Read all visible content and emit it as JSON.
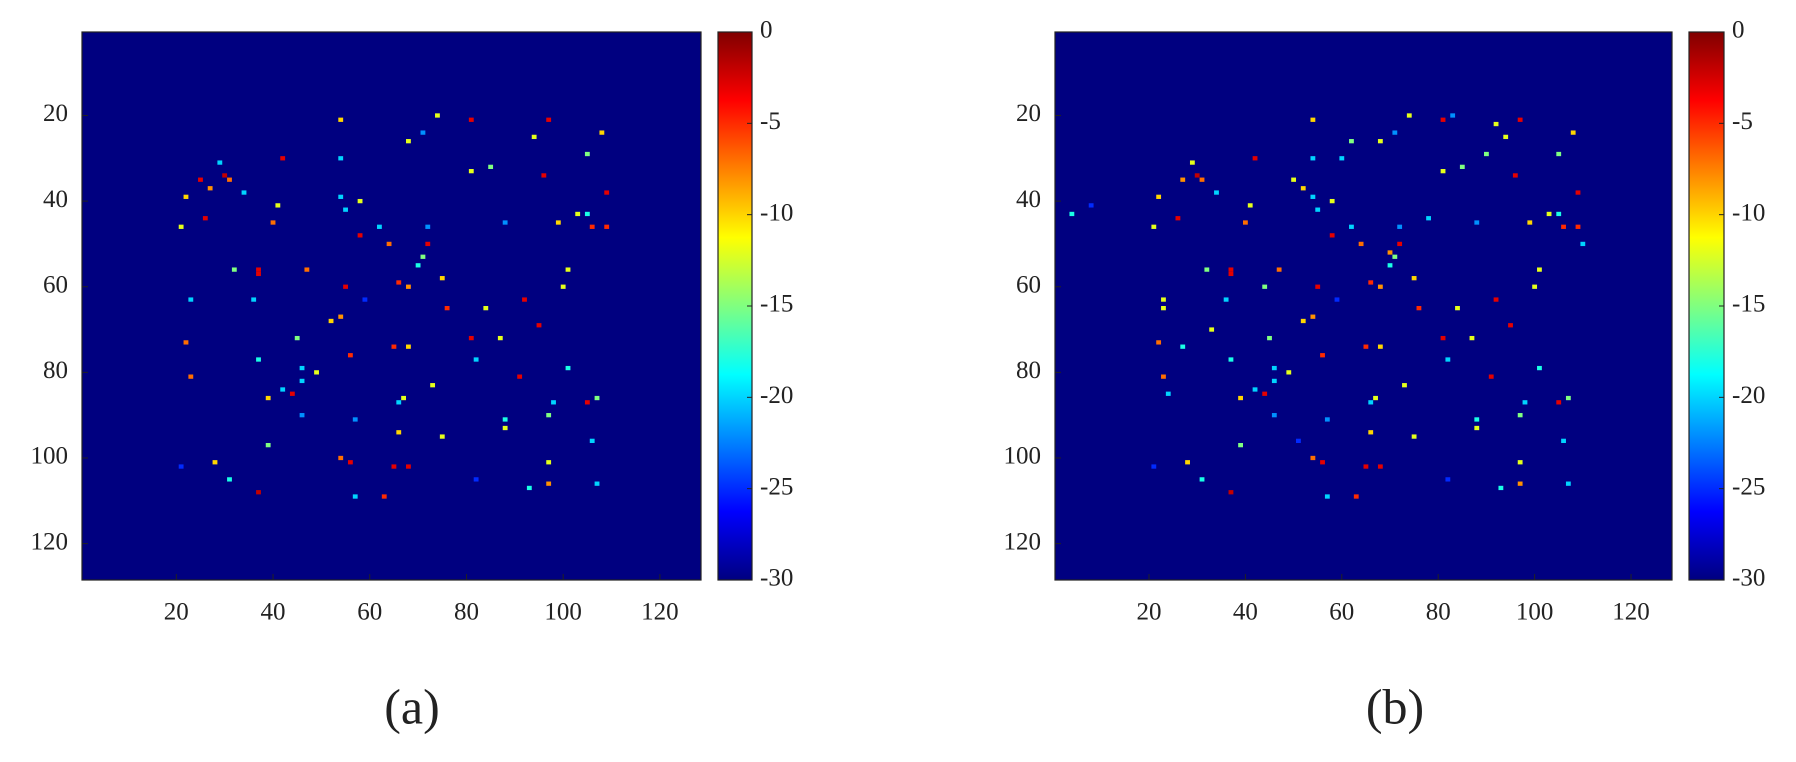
{
  "chart_data": [
    {
      "type": "heatmap",
      "panel_label": "(a)",
      "colormap": "jet",
      "fill_value": -30,
      "xlim": [
        0.5,
        128.5
      ],
      "ylim": [
        0.5,
        128.5
      ],
      "y_reversed": true,
      "xticks": [
        20,
        40,
        60,
        80,
        100,
        120
      ],
      "yticks": [
        20,
        40,
        60,
        80,
        100,
        120
      ],
      "clim": [
        -30,
        0
      ],
      "cbar_ticks": [
        0,
        -5,
        -10,
        -15,
        -20,
        -25,
        -30
      ],
      "x": [
        21,
        22,
        25,
        26,
        27,
        29,
        30,
        31,
        34,
        37,
        37,
        36,
        32,
        23,
        22,
        23,
        21,
        28,
        31,
        37,
        39,
        37,
        39,
        42,
        44,
        46,
        46,
        46,
        49,
        45,
        52,
        54,
        55,
        56,
        57,
        54,
        56,
        57,
        63,
        65,
        68,
        66,
        66,
        67,
        68,
        65,
        66,
        68,
        70,
        71,
        72,
        72,
        75,
        76,
        73,
        75,
        82,
        82,
        87,
        88,
        88,
        92,
        95,
        93,
        97,
        97,
        97,
        98,
        101,
        100,
        101,
        99,
        103,
        105,
        106,
        107,
        105,
        106,
        107,
        91,
        84,
        81,
        81,
        85,
        88,
        96,
        97,
        94,
        105,
        108,
        109,
        109,
        54,
        54,
        54,
        55,
        58,
        58,
        62,
        64,
        68,
        71,
        74,
        81,
        42,
        41,
        40,
        47,
        59
      ],
      "y": [
        46,
        39,
        35,
        44,
        37,
        31,
        34,
        35,
        38,
        56,
        57,
        63,
        56,
        63,
        73,
        81,
        102,
        101,
        105,
        108,
        97,
        77,
        86,
        84,
        85,
        79,
        82,
        90,
        80,
        72,
        68,
        67,
        60,
        76,
        91,
        100,
        101,
        109,
        109,
        102,
        102,
        94,
        87,
        86,
        74,
        74,
        59,
        60,
        55,
        53,
        50,
        46,
        58,
        65,
        83,
        95,
        77,
        105,
        72,
        93,
        91,
        63,
        69,
        107,
        101,
        106,
        90,
        87,
        79,
        60,
        56,
        45,
        43,
        43,
        46,
        86,
        87,
        96,
        106,
        81,
        65,
        72,
        33,
        32,
        45,
        34,
        21,
        25,
        29,
        24,
        38,
        46,
        21,
        30,
        39,
        42,
        40,
        48,
        46,
        50,
        26,
        24,
        20,
        21,
        30,
        41,
        45,
        56,
        63
      ],
      "values": [
        -12,
        -10,
        -3,
        -3,
        -8,
        -20,
        -2,
        -7,
        -20,
        -3,
        -3,
        -20,
        -15,
        -20,
        -7,
        -7,
        -25,
        -10,
        -18,
        -2,
        -15,
        -18,
        -10,
        -20,
        -3,
        -20,
        -20,
        -22,
        -12,
        -15,
        -10,
        -8,
        -3,
        -5,
        -22,
        -7,
        -3,
        -20,
        -5,
        -3,
        -3,
        -10,
        -20,
        -12,
        -10,
        -5,
        -5,
        -8,
        -18,
        -15,
        -3,
        -22,
        -10,
        -5,
        -12,
        -12,
        -20,
        -25,
        -12,
        -12,
        -18,
        -3,
        -3,
        -18,
        -12,
        -8,
        -15,
        -20,
        -18,
        -12,
        -12,
        -10,
        -12,
        -18,
        -5,
        -15,
        -3,
        -20,
        -20,
        -3,
        -12,
        -3,
        -12,
        -15,
        -22,
        -3,
        -3,
        -12,
        -15,
        -10,
        -3,
        -5,
        -10,
        -20,
        -20,
        -20,
        -12,
        -3,
        -20,
        -7,
        -12,
        -22,
        -12,
        -3,
        -3,
        -12,
        -7,
        -7,
        -25
      ]
    },
    {
      "type": "heatmap",
      "panel_label": "(b)",
      "colormap": "jet",
      "fill_value": -30,
      "xlim": [
        0.5,
        128.5
      ],
      "ylim": [
        0.5,
        128.5
      ],
      "y_reversed": true,
      "xticks": [
        20,
        40,
        60,
        80,
        100,
        120
      ],
      "yticks": [
        20,
        40,
        60,
        80,
        100,
        120
      ],
      "clim": [
        -30,
        0
      ],
      "cbar_ticks": [
        0,
        -5,
        -10,
        -15,
        -20,
        -25,
        -30
      ],
      "x": [
        4,
        8,
        21,
        22,
        23,
        24,
        26,
        27,
        29,
        30,
        31,
        34,
        37,
        37,
        36,
        32,
        23,
        22,
        23,
        21,
        28,
        31,
        37,
        39,
        37,
        39,
        42,
        44,
        46,
        46,
        46,
        49,
        45,
        52,
        54,
        55,
        56,
        57,
        54,
        56,
        57,
        63,
        65,
        68,
        66,
        66,
        67,
        68,
        65,
        66,
        68,
        70,
        71,
        72,
        72,
        75,
        76,
        73,
        75,
        82,
        82,
        87,
        88,
        88,
        92,
        95,
        93,
        97,
        97,
        97,
        98,
        101,
        100,
        101,
        99,
        103,
        105,
        106,
        107,
        105,
        106,
        107,
        91,
        84,
        81,
        81,
        85,
        88,
        96,
        97,
        94,
        105,
        108,
        109,
        109,
        54,
        54,
        54,
        55,
        58,
        58,
        62,
        64,
        68,
        71,
        74,
        81,
        42,
        41,
        40,
        47,
        59,
        27,
        33,
        44,
        50,
        51,
        52,
        60,
        62,
        70,
        78,
        83,
        90,
        92,
        110
      ],
      "y": [
        43,
        41,
        46,
        39,
        63,
        85,
        44,
        35,
        31,
        34,
        35,
        38,
        56,
        57,
        63,
        56,
        65,
        73,
        81,
        102,
        101,
        105,
        108,
        97,
        77,
        86,
        84,
        85,
        79,
        82,
        90,
        80,
        72,
        68,
        67,
        60,
        76,
        91,
        100,
        101,
        109,
        109,
        102,
        102,
        94,
        87,
        86,
        74,
        74,
        59,
        60,
        55,
        53,
        50,
        46,
        58,
        65,
        83,
        95,
        77,
        105,
        72,
        93,
        91,
        63,
        69,
        107,
        101,
        106,
        90,
        87,
        79,
        60,
        56,
        45,
        43,
        43,
        46,
        86,
        87,
        96,
        106,
        81,
        65,
        72,
        33,
        32,
        45,
        34,
        21,
        25,
        29,
        24,
        38,
        46,
        21,
        30,
        39,
        42,
        40,
        48,
        46,
        50,
        26,
        24,
        20,
        21,
        30,
        41,
        45,
        56,
        63,
        74,
        70,
        60,
        35,
        96,
        37,
        30,
        26,
        52,
        44,
        20,
        29,
        22,
        50
      ],
      "values": [
        -18,
        -25,
        -12,
        -10,
        -12,
        -20,
        -3,
        -8,
        -12,
        -2,
        -7,
        -20,
        -3,
        -3,
        -20,
        -15,
        -12,
        -7,
        -7,
        -25,
        -10,
        -18,
        -2,
        -15,
        -18,
        -10,
        -20,
        -3,
        -20,
        -20,
        -22,
        -12,
        -15,
        -10,
        -8,
        -3,
        -5,
        -22,
        -7,
        -3,
        -20,
        -5,
        -3,
        -3,
        -10,
        -20,
        -12,
        -10,
        -5,
        -5,
        -8,
        -18,
        -15,
        -3,
        -22,
        -10,
        -5,
        -12,
        -12,
        -20,
        -25,
        -12,
        -12,
        -18,
        -3,
        -3,
        -18,
        -12,
        -8,
        -15,
        -20,
        -18,
        -12,
        -12,
        -10,
        -12,
        -18,
        -5,
        -15,
        -3,
        -20,
        -20,
        -3,
        -12,
        -3,
        -12,
        -15,
        -22,
        -3,
        -3,
        -12,
        -15,
        -10,
        -3,
        -5,
        -10,
        -20,
        -20,
        -20,
        -12,
        -3,
        -20,
        -7,
        -12,
        -22,
        -12,
        -3,
        -3,
        -12,
        -7,
        -7,
        -25,
        -18,
        -12,
        -15,
        -12,
        -25,
        -10,
        -20,
        -15,
        -8,
        -20,
        -22,
        -15,
        -12,
        -20
      ]
    }
  ]
}
